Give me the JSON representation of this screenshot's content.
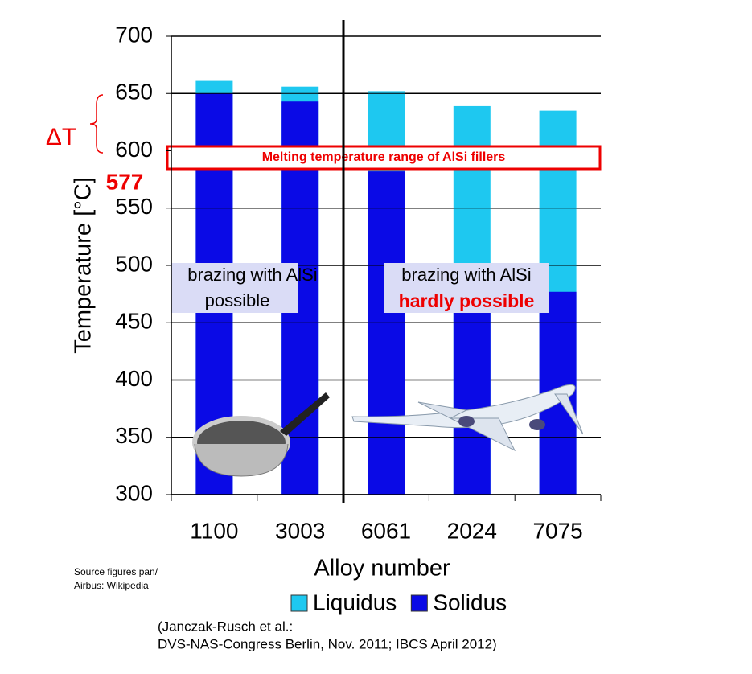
{
  "chart_data": {
    "type": "bar",
    "overlap": true,
    "y_label": "Temperature [°C]",
    "x_label": "Alloy number",
    "categories": [
      "1100",
      "3003",
      "6061",
      "2024",
      "7075"
    ],
    "series": [
      {
        "name": "Liquidus",
        "color": "#1ec8f0",
        "values": [
          661,
          656,
          652,
          639,
          635
        ]
      },
      {
        "name": "Solidus",
        "color": "#0a0ae6",
        "values": [
          650,
          643,
          582,
          502,
          477
        ]
      }
    ],
    "ylim": [
      300,
      700
    ],
    "yticks": [
      300,
      350,
      400,
      450,
      500,
      550,
      600,
      650,
      700
    ],
    "grid": true,
    "annotations": {
      "delta": "ΔT",
      "solidus_mark": "577",
      "filler_band": "Melting temperature range of AlSi fillers",
      "left_text_1": "brazing with AlSi",
      "left_text_2": "possible",
      "right_text_1": "brazing with AlSi",
      "right_text_2": "hardly possible",
      "source_1": "Source figures pan/",
      "source_2": "Airbus: Wikipedia",
      "citation_1": "(Janczak-Rusch et al.:",
      "citation_2": "DVS-NAS-Congress Berlin, Nov. 2011; IBCS April 2012)"
    }
  }
}
